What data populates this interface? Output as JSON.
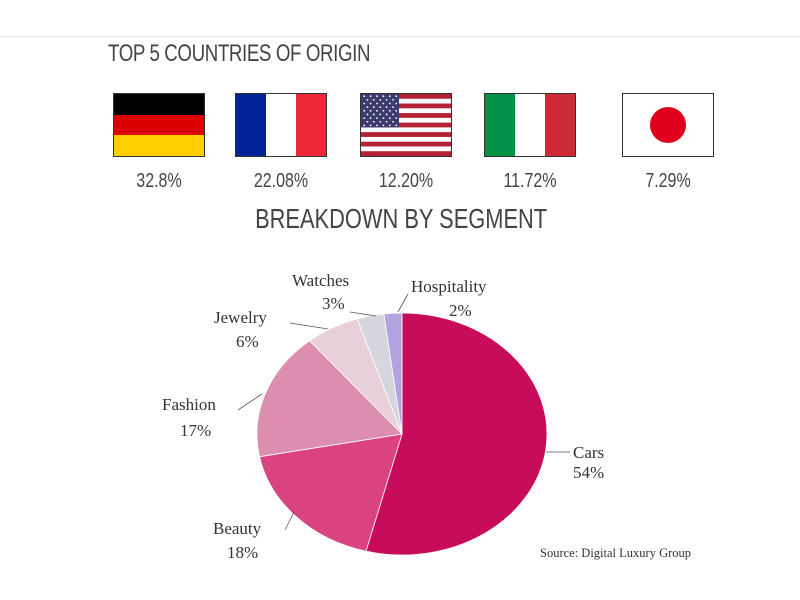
{
  "titles": {
    "countries": "TOP 5 COUNTRIES OF ORIGIN",
    "segments": "BREAKDOWN BY  SEGMENT"
  },
  "countries": [
    {
      "name": "Germany",
      "icon": "germany-flag-icon",
      "value": "32.8%"
    },
    {
      "name": "France",
      "icon": "france-flag-icon",
      "value": "22.08%"
    },
    {
      "name": "United States",
      "icon": "usa-flag-icon",
      "value": "12.20%"
    },
    {
      "name": "Italy",
      "icon": "italy-flag-icon",
      "value": "11.72%"
    },
    {
      "name": "Japan",
      "icon": "japan-flag-icon",
      "value": "7.29%"
    }
  ],
  "source": "Source: Digital Luxury Group",
  "chart_data": {
    "type": "pie",
    "title": "BREAKDOWN BY  SEGMENT",
    "slices": [
      {
        "name": "Cars",
        "value": 54,
        "label": "54%",
        "color": "#c80c5c"
      },
      {
        "name": "Beauty",
        "value": 18,
        "label": "18%",
        "color": "#d9437f"
      },
      {
        "name": "Fashion",
        "value": 17,
        "label": "17%",
        "color": "#dd8db0"
      },
      {
        "name": "Jewelry",
        "value": 6,
        "label": "6%",
        "color": "#e9cfd9"
      },
      {
        "name": "Watches",
        "value": 3,
        "label": "3%",
        "color": "#d5d5dd"
      },
      {
        "name": "Hospitality",
        "value": 2,
        "label": "2%",
        "color": "#b5a2e0"
      }
    ]
  }
}
